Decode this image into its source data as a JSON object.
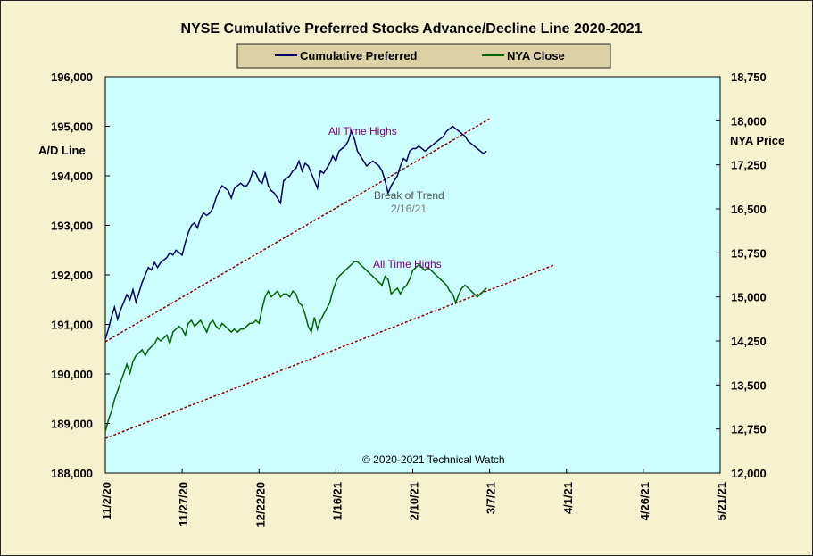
{
  "chart_data": {
    "type": "line",
    "title": "NYSE Cumulative  Preferred Stocks Advance/Decline Line 2020-2021",
    "ylabel_left": "A/D Line",
    "ylabel_right": "NYA Price",
    "ylim_left": [
      188000,
      196000
    ],
    "ylim_right": [
      12000,
      18750
    ],
    "yticks_left": [
      "196,000",
      "195,000",
      "194,000",
      "193,000",
      "192,000",
      "191,000",
      "190,000",
      "189,000",
      "188,000"
    ],
    "yticks_right": [
      "18,750",
      "18,000",
      "17,250",
      "16,500",
      "15,750",
      "15,000",
      "14,250",
      "13,500",
      "12,750",
      "12,000"
    ],
    "xticks": [
      "11/2/20",
      "11/27/20",
      "12/22/20",
      "1/16/21",
      "2/10/21",
      "3/7/21",
      "4/1/21",
      "4/26/21",
      "5/21/21"
    ],
    "xlim_days": [
      0,
      200
    ],
    "grid": false,
    "legend": "top-center",
    "background_plot": "#ccffff",
    "colors": {
      "ad": "#000066",
      "nya": "#006600",
      "trend": "#8b0000",
      "annotation": "#800080"
    },
    "series": [
      {
        "name": "Cumulative Preferred",
        "axis": "left",
        "x": [
          0,
          1,
          2,
          3,
          4,
          5,
          6,
          7,
          8,
          9,
          10,
          11,
          12,
          13,
          14,
          15,
          16,
          17,
          18,
          19,
          20,
          21,
          22,
          23,
          24,
          25,
          26,
          27,
          28,
          29,
          30,
          31,
          32,
          33,
          34,
          35,
          36,
          37,
          38,
          39,
          40,
          41,
          42,
          43,
          44,
          45,
          46,
          47,
          48,
          49,
          50,
          51,
          52,
          53,
          54,
          55,
          56,
          57,
          58,
          59,
          60,
          61,
          62,
          63,
          64,
          65,
          66,
          67,
          68,
          69,
          70,
          71,
          72,
          73,
          74,
          75,
          76,
          77,
          78,
          79,
          80,
          81,
          82,
          83,
          84,
          85,
          86,
          87,
          88,
          89,
          90,
          91,
          92,
          93,
          94,
          95,
          96,
          97,
          98,
          99,
          100,
          101,
          102,
          103,
          104,
          105,
          106,
          107,
          108,
          109,
          110,
          111,
          112,
          113,
          114,
          115,
          116,
          117,
          118,
          119,
          120,
          121,
          122,
          123,
          124
        ],
        "values": [
          190700,
          190900,
          191150,
          191350,
          191100,
          191300,
          191450,
          191600,
          191500,
          191700,
          191450,
          191650,
          191850,
          192000,
          192150,
          192100,
          192250,
          192150,
          192250,
          192300,
          192350,
          192450,
          192400,
          192500,
          192450,
          192400,
          192650,
          192850,
          193000,
          193050,
          192950,
          193150,
          193250,
          193200,
          193250,
          193350,
          193550,
          193700,
          193800,
          193750,
          193700,
          193550,
          193750,
          193800,
          193850,
          193800,
          193800,
          193900,
          194100,
          194050,
          193900,
          193850,
          194050,
          193800,
          193700,
          193650,
          193550,
          193450,
          193900,
          193950,
          194000,
          194100,
          194150,
          194300,
          194100,
          194250,
          194200,
          194050,
          193900,
          193750,
          194100,
          194050,
          194150,
          194250,
          194400,
          194300,
          194500,
          194550,
          194600,
          194700,
          194900,
          194750,
          194500,
          194400,
          194300,
          194200,
          194250,
          194300,
          194250,
          194200,
          194100,
          193900,
          193650,
          193800,
          193900,
          194000,
          194200,
          194350,
          194300,
          194500,
          194550,
          194550,
          194600,
          194550,
          194500,
          194550,
          194600,
          194650,
          194700,
          194750,
          194800,
          194900,
          194950,
          195000,
          194950,
          194900,
          194850,
          194800,
          194700,
          194650,
          194600,
          194550,
          194500,
          194450,
          194500
        ]
      },
      {
        "name": "NYA Close",
        "axis": "right",
        "x": [
          0,
          1,
          2,
          3,
          4,
          5,
          6,
          7,
          8,
          9,
          10,
          11,
          12,
          13,
          14,
          15,
          16,
          17,
          18,
          19,
          20,
          21,
          22,
          23,
          24,
          25,
          26,
          27,
          28,
          29,
          30,
          31,
          32,
          33,
          34,
          35,
          36,
          37,
          38,
          39,
          40,
          41,
          42,
          43,
          44,
          45,
          46,
          47,
          48,
          49,
          50,
          51,
          52,
          53,
          54,
          55,
          56,
          57,
          58,
          59,
          60,
          61,
          62,
          63,
          64,
          65,
          66,
          67,
          68,
          69,
          70,
          71,
          72,
          73,
          74,
          75,
          76,
          77,
          78,
          79,
          80,
          81,
          82,
          83,
          84,
          85,
          86,
          87,
          88,
          89,
          90,
          91,
          92,
          93,
          94,
          95,
          96,
          97,
          98,
          99,
          100,
          101,
          102,
          103,
          104,
          105,
          106,
          107,
          108,
          109,
          110,
          111,
          112,
          113,
          114,
          115,
          116,
          117,
          118,
          119,
          120,
          121,
          122,
          123,
          124
        ],
        "values": [
          12700,
          12900,
          13050,
          13250,
          13400,
          13550,
          13700,
          13850,
          13700,
          13900,
          14000,
          14050,
          14100,
          14000,
          14100,
          14150,
          14200,
          14300,
          14250,
          14300,
          14350,
          14200,
          14400,
          14450,
          14500,
          14450,
          14350,
          14550,
          14600,
          14500,
          14550,
          14600,
          14500,
          14400,
          14550,
          14600,
          14500,
          14450,
          14550,
          14500,
          14450,
          14400,
          14450,
          14400,
          14450,
          14450,
          14500,
          14550,
          14550,
          14600,
          14550,
          14800,
          15000,
          15100,
          15000,
          15050,
          15100,
          15000,
          15050,
          15050,
          15000,
          15100,
          15050,
          14900,
          14850,
          14700,
          14500,
          14400,
          14650,
          14450,
          14600,
          14700,
          14800,
          14900,
          15100,
          15250,
          15350,
          15400,
          15450,
          15500,
          15550,
          15600,
          15600,
          15550,
          15500,
          15450,
          15400,
          15350,
          15300,
          15250,
          15200,
          15350,
          15300,
          15050,
          15100,
          15150,
          15050,
          15150,
          15200,
          15300,
          15450,
          15500,
          15550,
          15500,
          15450,
          15500,
          15450,
          15400,
          15350,
          15300,
          15250,
          15200,
          15100,
          15050,
          14900,
          15050,
          15150,
          15200,
          15150,
          15100,
          15050,
          15000,
          15050,
          15100,
          15150
        ]
      }
    ],
    "trendlines": [
      {
        "axis": "left",
        "from": [
          0,
          190650
        ],
        "to": [
          125,
          195150
        ]
      },
      {
        "axis": "left",
        "from": [
          0,
          188700
        ],
        "to": [
          146,
          192200
        ]
      }
    ]
  },
  "annotations": {
    "ath_ad": "All Time Highs",
    "ath_nya": "All Time Highs",
    "break_line1": "Break of Trend",
    "break_line2": "2/16/21",
    "copyright": "© 2020-2021  Technical Watch"
  }
}
